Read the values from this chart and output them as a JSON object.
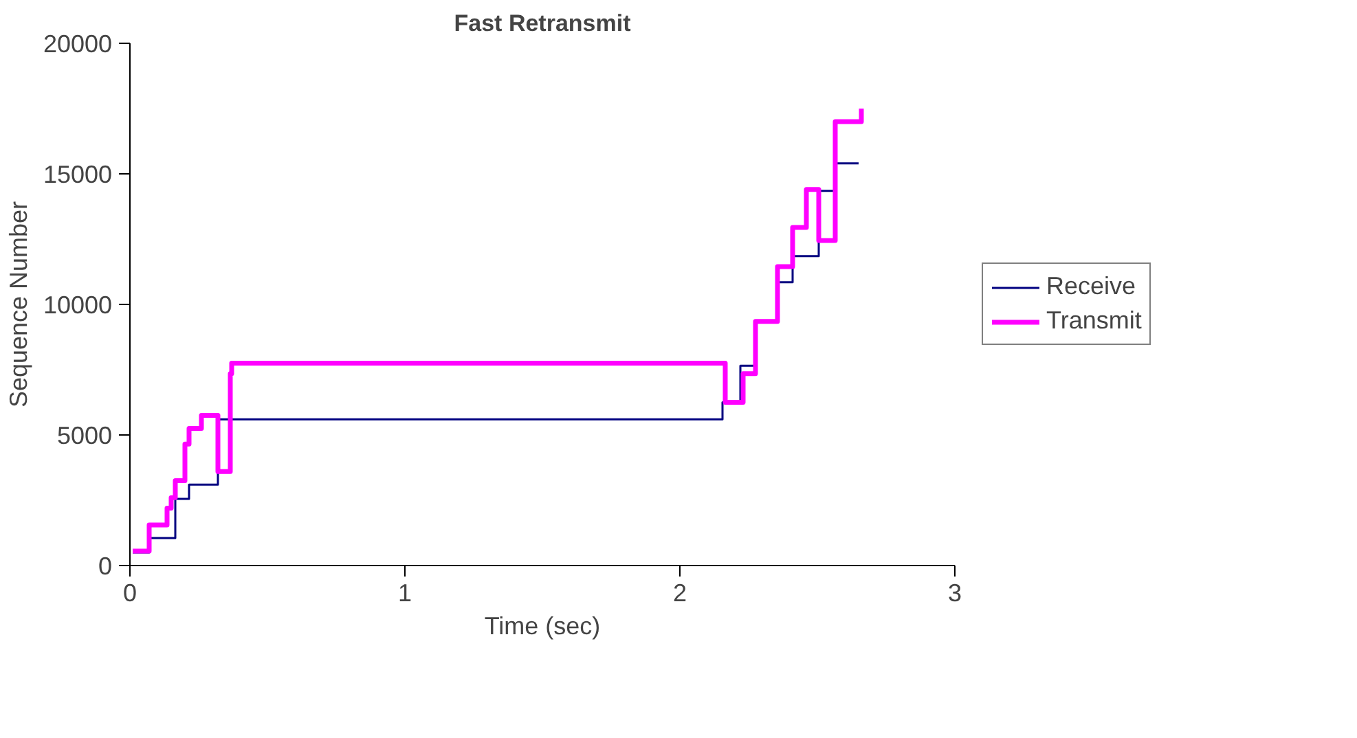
{
  "chart_data": {
    "type": "step",
    "title": "Fast Retransmit",
    "xlabel": "Time (sec)",
    "ylabel": "Sequence Number",
    "xlim": [
      0,
      3
    ],
    "xticks": [
      0,
      1,
      2,
      3
    ],
    "ylim": [
      0,
      20000
    ],
    "yticks": [
      0,
      5000,
      10000,
      15000,
      20000
    ],
    "grid": false,
    "legend": "right",
    "marker": "none",
    "line_style": "solid",
    "series": [
      {
        "name": "Receive",
        "color": "#000080",
        "x": [
          0.01,
          0.07,
          0.165,
          0.215,
          0.32,
          2.155,
          2.22,
          2.275,
          2.355,
          2.41,
          2.505,
          2.565,
          2.65
        ],
        "values": [
          500,
          1050,
          2550,
          3100,
          5600,
          6250,
          7650,
          9350,
          10850,
          11850,
          14350,
          15400,
          15400
        ]
      },
      {
        "name": "Transmit",
        "color": "#ff00ff",
        "x": [
          0.01,
          0.07,
          0.135,
          0.15,
          0.165,
          0.2,
          0.215,
          0.26,
          0.32,
          0.365,
          0.37,
          2.165,
          2.23,
          2.275,
          2.355,
          2.41,
          2.46,
          2.505,
          2.565,
          2.66
        ],
        "values": [
          550,
          1550,
          2200,
          2600,
          3250,
          4650,
          5250,
          5750,
          3600,
          7350,
          7750,
          6250,
          7350,
          9350,
          11450,
          12950,
          14400,
          12450,
          17000,
          17500
        ]
      }
    ]
  }
}
